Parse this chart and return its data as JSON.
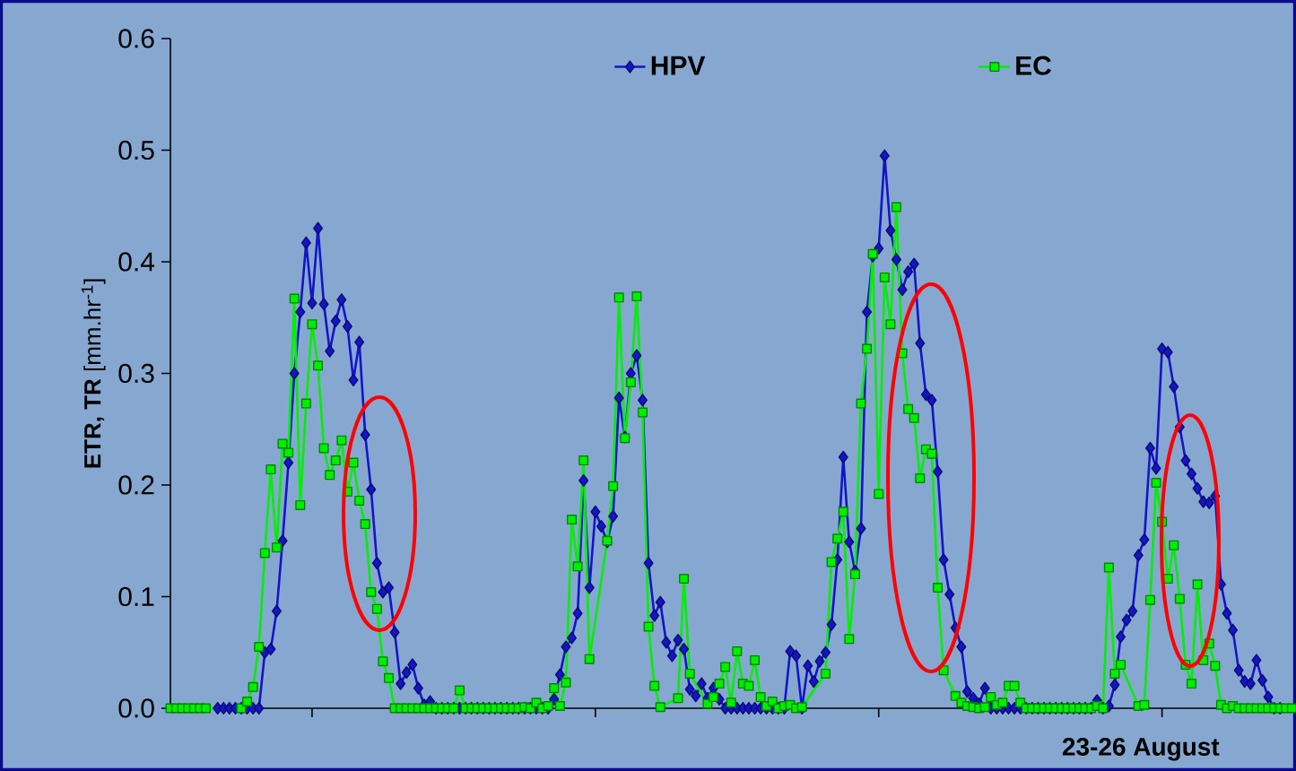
{
  "chart_data": {
    "type": "line",
    "ylabel": "**ETR, TR** [mm.hr$^{-1}$]",
    "xlabel": "23-26 August",
    "categories": [
      null,
      null,
      null,
      null,
      null,
      null,
      null,
      null,
      null,
      null,
      null,
      null,
      null,
      null,
      null,
      null,
      null,
      null,
      null,
      null,
      null,
      null,
      null,
      null,
      null,
      null,
      null,
      null,
      null,
      null,
      null,
      null,
      null,
      null,
      null,
      null,
      null,
      null,
      null,
      null,
      null,
      null,
      null,
      null,
      null,
      null,
      null,
      null,
      null,
      null,
      null,
      null,
      null,
      null,
      null,
      null,
      null,
      null,
      null,
      null,
      null,
      null,
      null,
      null,
      null,
      null,
      null,
      null,
      null,
      null,
      null,
      null,
      null,
      null,
      null,
      null,
      null,
      null,
      null,
      null,
      null,
      null,
      null,
      null,
      null,
      null,
      null,
      null,
      null,
      null,
      null,
      null,
      null,
      null,
      null,
      null,
      null,
      null,
      null,
      null,
      null,
      null,
      null,
      null,
      null,
      null,
      null,
      null,
      null,
      null,
      null,
      null,
      null,
      null,
      null,
      null,
      null,
      null,
      null,
      null,
      null,
      null,
      null,
      null,
      null,
      null,
      null,
      null,
      null,
      null,
      null,
      null,
      null,
      null,
      null,
      null,
      null,
      null,
      null,
      null,
      null,
      null,
      null,
      null,
      null,
      null,
      null,
      null,
      null,
      null,
      null,
      null,
      null,
      null,
      null,
      null,
      null,
      null,
      null,
      null,
      null,
      null,
      null,
      null,
      null,
      null,
      null,
      null,
      null,
      null,
      null,
      null,
      null,
      null,
      null,
      null,
      null,
      null,
      null,
      null,
      null,
      null,
      null,
      null,
      null,
      null,
      null,
      null,
      null,
      null,
      null
    ],
    "ylim": [
      0,
      0.6
    ],
    "yticks": [
      {
        "value": 0,
        "label": "0.0"
      },
      {
        "value": 0.1,
        "label": "0.1"
      },
      {
        "value": 0.2,
        "label": "0.2"
      },
      {
        "value": 0.3,
        "label": "0.3"
      },
      {
        "value": 0.4,
        "label": "0.4"
      },
      {
        "value": 0.5,
        "label": "0.5"
      },
      {
        "value": 0.6,
        "label": "0.6"
      }
    ],
    "tick_labels": "y",
    "legend": "top",
    "line_style": "solid",
    "series": [
      {
        "name": "HPV",
        "color": "#1414c8",
        "marker": "diamond",
        "values": [
          null,
          null,
          null,
          null,
          null,
          null,
          null,
          null,
          0,
          0,
          0,
          0,
          0,
          0,
          0,
          0,
          0.05,
          0.053,
          0.087,
          0.15,
          0.22,
          0.3,
          0.355,
          0.417,
          0.363,
          0.43,
          0.362,
          0.32,
          0.347,
          0.366,
          0.342,
          0.294,
          0.328,
          0.245,
          0.196,
          0.13,
          0.104,
          0.108,
          0.068,
          0.022,
          0.032,
          0.039,
          0.018,
          0.003,
          0.006,
          0,
          0,
          0,
          0,
          0,
          0,
          0,
          0,
          0,
          0,
          0,
          0,
          0,
          0,
          0,
          0,
          0,
          0,
          0,
          0,
          0.008,
          0.03,
          0.055,
          0.063,
          0.085,
          0.204,
          0.108,
          0.176,
          0.163,
          0.149,
          0.172,
          0.278,
          0.243,
          0.3,
          0.316,
          0.276,
          0.13,
          0.083,
          0.095,
          0.059,
          0.047,
          0.061,
          0.053,
          0.017,
          0.011,
          0.022,
          0.009,
          0.018,
          0.008,
          0,
          0,
          0,
          0,
          0,
          0,
          0,
          0,
          0,
          0,
          0,
          0.051,
          0.047,
          0,
          0.038,
          0.024,
          0.042,
          0.05,
          0.075,
          0.133,
          0.225,
          0.149,
          0.123,
          0.161,
          0.355,
          0.405,
          0.412,
          0.495,
          0.428,
          0.402,
          0.375,
          0.391,
          0.398,
          0.327,
          0.281,
          0.276,
          0.212,
          0.133,
          0.102,
          0.072,
          0.055,
          0.015,
          0.009,
          0.004,
          0.018,
          0,
          0,
          0,
          0,
          0,
          0,
          0,
          0,
          0,
          0,
          0,
          0,
          0,
          0,
          0,
          0,
          0,
          0,
          0.007,
          0,
          0.002,
          0.021,
          0.064,
          0.079,
          0.087,
          0.137,
          0.151,
          0.233,
          0.215,
          0.322,
          0.319,
          0.288,
          0.252,
          0.222,
          0.21,
          0.197,
          0.185,
          0.184,
          0.19,
          0.111,
          0.085,
          0.07,
          0.034,
          0.024,
          0.022,
          0.043,
          0.025,
          0.01,
          0,
          0,
          null,
          null
        ]
      },
      {
        "name": "EC",
        "color": "#00f000",
        "marker": "square",
        "values": [
          0,
          0,
          0,
          0,
          0,
          0,
          0,
          null,
          null,
          null,
          null,
          null,
          0,
          0.006,
          0.019,
          0.055,
          0.139,
          0.214,
          0.144,
          0.237,
          0.229,
          0.367,
          0.182,
          0.273,
          0.344,
          0.307,
          0.233,
          0.209,
          0.222,
          0.24,
          0.194,
          0.22,
          0.186,
          0.165,
          0.104,
          0.089,
          0.042,
          0.027,
          0,
          0,
          0,
          0,
          0,
          0,
          0,
          0,
          0,
          0,
          0,
          0.016,
          0,
          0,
          0,
          0,
          0,
          0,
          0,
          0,
          0,
          0,
          0.001,
          0,
          0.005,
          0,
          0.002,
          0.018,
          0.002,
          0.023,
          0.169,
          0.127,
          0.222,
          0.044,
          null,
          null,
          0.15,
          0.199,
          0.368,
          0.242,
          0.292,
          0.369,
          0.265,
          0.073,
          0.02,
          0.001,
          null,
          null,
          0.009,
          0.116,
          0.031,
          null,
          null,
          0.004,
          0.01,
          0.022,
          0.037,
          0.005,
          0.051,
          0.022,
          0.02,
          0.043,
          0.01,
          0.002,
          0.006,
          0,
          0.002,
          0.003,
          0,
          0.001,
          null,
          null,
          null,
          0.031,
          0.131,
          0.152,
          0.176,
          0.062,
          0.12,
          0.273,
          0.322,
          0.407,
          0.192,
          0.386,
          0.344,
          0.449,
          0.318,
          0.268,
          0.26,
          0.206,
          0.232,
          0.228,
          0.108,
          0.034,
          null,
          0.011,
          0.005,
          0.002,
          0.001,
          0,
          0.001,
          0.01,
          0.003,
          0.005,
          0.02,
          0.02,
          0.005,
          0,
          0,
          0,
          0,
          0,
          0,
          0,
          0,
          0,
          0,
          0,
          0,
          0.002,
          0,
          0.126,
          0.031,
          0.039,
          null,
          null,
          0.002,
          0.003,
          0.097,
          0.202,
          0.167,
          0.116,
          0.146,
          0.098,
          0.039,
          0.022,
          0.111,
          0.043,
          0.058,
          0.038,
          0.003,
          0,
          0.002,
          0,
          0,
          0,
          0,
          0,
          0,
          0,
          0,
          0,
          0
        ]
      }
    ]
  }
}
